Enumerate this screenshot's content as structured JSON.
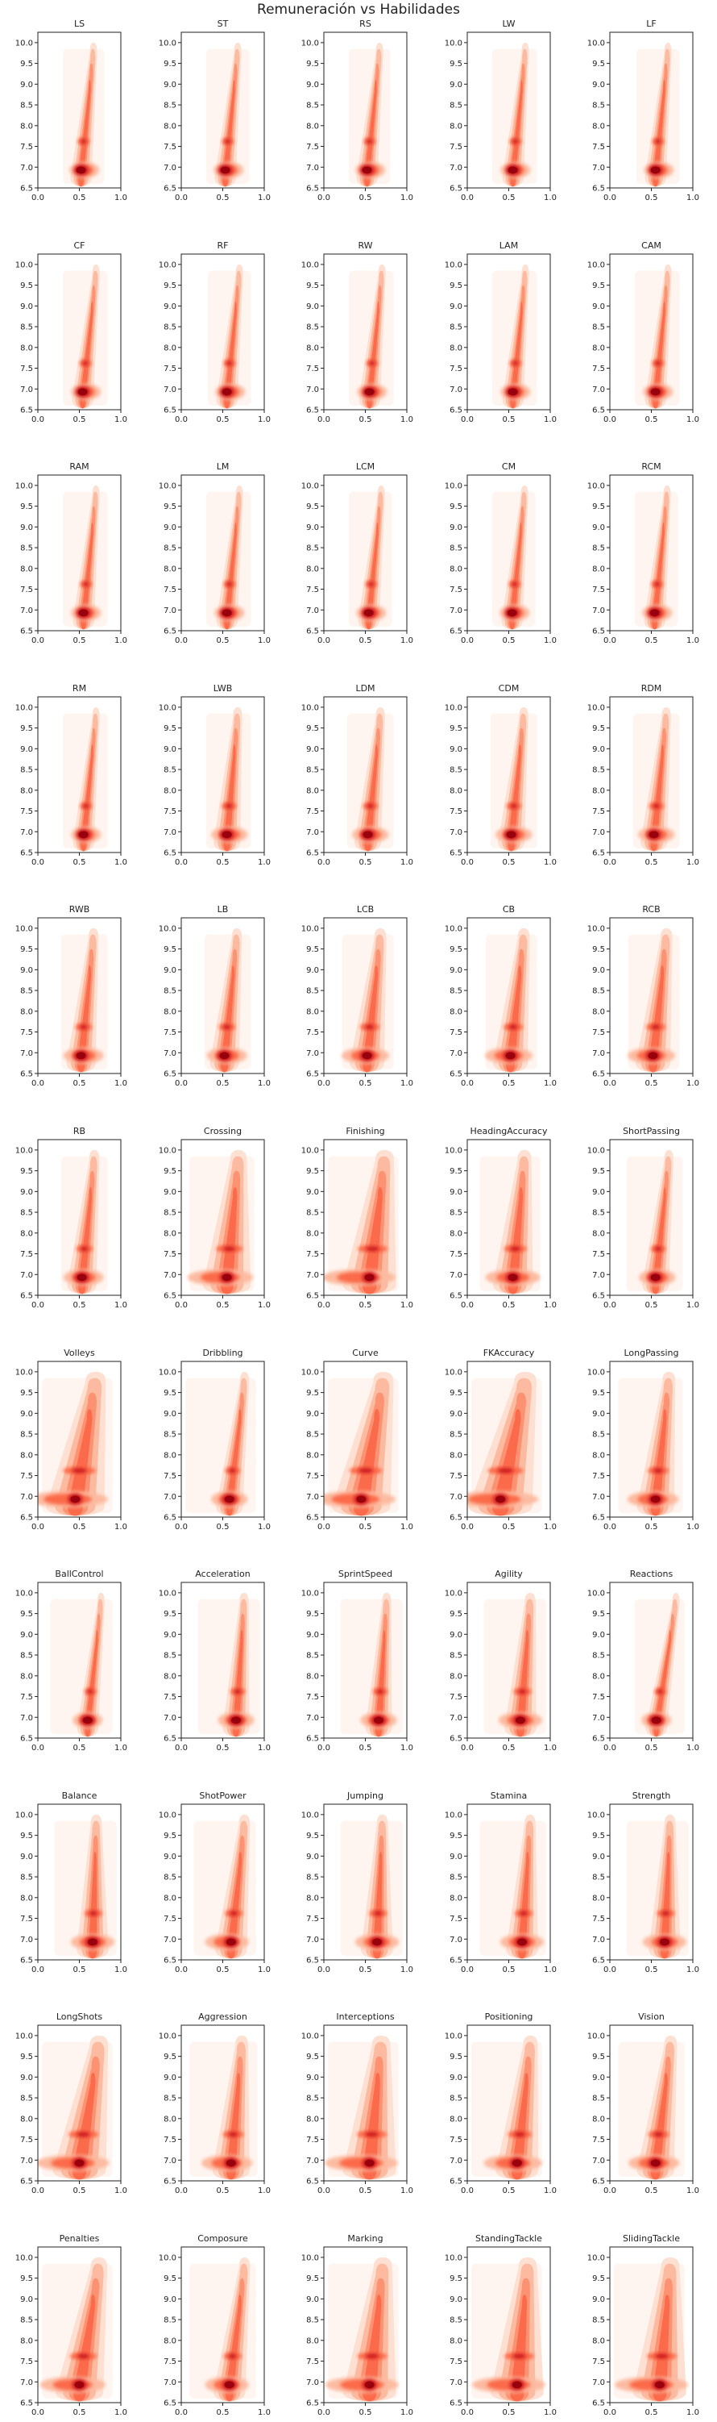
{
  "figure": {
    "title": "Remuneración vs Habilidades"
  },
  "chart_data": {
    "type": "kde-grid",
    "subtitle_note": "",
    "xlim": [
      0,
      1
    ],
    "ylim": [
      6.5,
      10.25
    ],
    "x_ticks": [
      0.0,
      0.5,
      1.0
    ],
    "x_tick_labels": [
      "0.0",
      "0.5",
      "1.0"
    ],
    "y_ticks": [
      6.5,
      7.0,
      7.5,
      8.0,
      8.5,
      9.0,
      9.5,
      10.0
    ],
    "y_tick_labels": [
      "6.5",
      "7.0",
      "7.5",
      "8.0",
      "8.5",
      "9.0",
      "9.5",
      "10.0"
    ],
    "colormap": [
      "#fff5f0",
      "#fee0d2",
      "#fcbba1",
      "#fc9272",
      "#fb6a4a",
      "#ef3b2c",
      "#cb181d",
      "#99000d"
    ],
    "grid": false,
    "panels": [
      {
        "title": "LS",
        "x_center": 0.56,
        "x_min": 0.3,
        "x_max": 0.8,
        "trend": [
          [
            0.52,
            7.0
          ],
          [
            0.66,
            9.8
          ]
        ],
        "spread": 0.08
      },
      {
        "title": "ST",
        "x_center": 0.57,
        "x_min": 0.3,
        "x_max": 0.82,
        "trend": [
          [
            0.53,
            7.0
          ],
          [
            0.67,
            9.8
          ]
        ],
        "spread": 0.08
      },
      {
        "title": "RS",
        "x_center": 0.56,
        "x_min": 0.3,
        "x_max": 0.8,
        "trend": [
          [
            0.52,
            7.0
          ],
          [
            0.66,
            9.8
          ]
        ],
        "spread": 0.08
      },
      {
        "title": "LW",
        "x_center": 0.58,
        "x_min": 0.3,
        "x_max": 0.84,
        "trend": [
          [
            0.55,
            7.0
          ],
          [
            0.69,
            9.8
          ]
        ],
        "spread": 0.08
      },
      {
        "title": "LF",
        "x_center": 0.59,
        "x_min": 0.32,
        "x_max": 0.84,
        "trend": [
          [
            0.55,
            7.0
          ],
          [
            0.69,
            9.8
          ]
        ],
        "spread": 0.08
      },
      {
        "title": "CF",
        "x_center": 0.58,
        "x_min": 0.3,
        "x_max": 0.84,
        "trend": [
          [
            0.54,
            7.0
          ],
          [
            0.69,
            9.8
          ]
        ],
        "spread": 0.08
      },
      {
        "title": "RF",
        "x_center": 0.59,
        "x_min": 0.32,
        "x_max": 0.84,
        "trend": [
          [
            0.55,
            7.0
          ],
          [
            0.69,
            9.8
          ]
        ],
        "spread": 0.08
      },
      {
        "title": "RW",
        "x_center": 0.58,
        "x_min": 0.3,
        "x_max": 0.84,
        "trend": [
          [
            0.55,
            7.0
          ],
          [
            0.69,
            9.8
          ]
        ],
        "spread": 0.08
      },
      {
        "title": "LAM",
        "x_center": 0.58,
        "x_min": 0.3,
        "x_max": 0.84,
        "trend": [
          [
            0.55,
            7.0
          ],
          [
            0.69,
            9.8
          ]
        ],
        "spread": 0.08
      },
      {
        "title": "CAM",
        "x_center": 0.58,
        "x_min": 0.3,
        "x_max": 0.84,
        "trend": [
          [
            0.55,
            7.0
          ],
          [
            0.69,
            9.8
          ]
        ],
        "spread": 0.08
      },
      {
        "title": "RAM",
        "x_center": 0.58,
        "x_min": 0.3,
        "x_max": 0.84,
        "trend": [
          [
            0.55,
            7.0
          ],
          [
            0.69,
            9.8
          ]
        ],
        "spread": 0.08
      },
      {
        "title": "LM",
        "x_center": 0.58,
        "x_min": 0.3,
        "x_max": 0.84,
        "trend": [
          [
            0.55,
            7.0
          ],
          [
            0.69,
            9.8
          ]
        ],
        "spread": 0.08
      },
      {
        "title": "LCM",
        "x_center": 0.57,
        "x_min": 0.3,
        "x_max": 0.82,
        "trend": [
          [
            0.54,
            7.0
          ],
          [
            0.68,
            9.8
          ]
        ],
        "spread": 0.08
      },
      {
        "title": "CM",
        "x_center": 0.57,
        "x_min": 0.3,
        "x_max": 0.82,
        "trend": [
          [
            0.54,
            7.0
          ],
          [
            0.68,
            9.8
          ]
        ],
        "spread": 0.08
      },
      {
        "title": "RCM",
        "x_center": 0.57,
        "x_min": 0.3,
        "x_max": 0.82,
        "trend": [
          [
            0.54,
            7.0
          ],
          [
            0.68,
            9.8
          ]
        ],
        "spread": 0.08
      },
      {
        "title": "RM",
        "x_center": 0.58,
        "x_min": 0.3,
        "x_max": 0.84,
        "trend": [
          [
            0.55,
            7.0
          ],
          [
            0.69,
            9.8
          ]
        ],
        "spread": 0.08
      },
      {
        "title": "LWB",
        "x_center": 0.58,
        "x_min": 0.3,
        "x_max": 0.84,
        "trend": [
          [
            0.55,
            7.0
          ],
          [
            0.67,
            9.8
          ]
        ],
        "spread": 0.1
      },
      {
        "title": "LDM",
        "x_center": 0.56,
        "x_min": 0.28,
        "x_max": 0.84,
        "trend": [
          [
            0.53,
            7.0
          ],
          [
            0.67,
            9.8
          ]
        ],
        "spread": 0.1
      },
      {
        "title": "CDM",
        "x_center": 0.56,
        "x_min": 0.28,
        "x_max": 0.84,
        "trend": [
          [
            0.53,
            7.0
          ],
          [
            0.67,
            9.8
          ]
        ],
        "spread": 0.1
      },
      {
        "title": "RDM",
        "x_center": 0.56,
        "x_min": 0.28,
        "x_max": 0.84,
        "trend": [
          [
            0.53,
            7.0
          ],
          [
            0.67,
            9.8
          ]
        ],
        "spread": 0.1
      },
      {
        "title": "RWB",
        "x_center": 0.55,
        "x_min": 0.28,
        "x_max": 0.84,
        "trend": [
          [
            0.52,
            7.0
          ],
          [
            0.66,
            9.8
          ]
        ],
        "spread": 0.11
      },
      {
        "title": "LB",
        "x_center": 0.55,
        "x_min": 0.28,
        "x_max": 0.84,
        "trend": [
          [
            0.52,
            7.0
          ],
          [
            0.66,
            9.8
          ]
        ],
        "spread": 0.11
      },
      {
        "title": "LCB",
        "x_center": 0.5,
        "x_min": 0.22,
        "x_max": 0.84,
        "trend": [
          [
            0.52,
            7.0
          ],
          [
            0.67,
            9.8
          ]
        ],
        "spread": 0.13
      },
      {
        "title": "CB",
        "x_center": 0.5,
        "x_min": 0.22,
        "x_max": 0.84,
        "trend": [
          [
            0.52,
            7.0
          ],
          [
            0.67,
            9.8
          ]
        ],
        "spread": 0.13
      },
      {
        "title": "RCB",
        "x_center": 0.5,
        "x_min": 0.22,
        "x_max": 0.84,
        "trend": [
          [
            0.52,
            7.0
          ],
          [
            0.67,
            9.8
          ]
        ],
        "spread": 0.13
      },
      {
        "title": "RB",
        "x_center": 0.55,
        "x_min": 0.28,
        "x_max": 0.84,
        "trend": [
          [
            0.53,
            7.0
          ],
          [
            0.67,
            9.8
          ]
        ],
        "spread": 0.11
      },
      {
        "title": "Crossing",
        "x_center": 0.47,
        "x_min": 0.1,
        "x_max": 0.88,
        "trend": [
          [
            0.55,
            7.0
          ],
          [
            0.68,
            9.8
          ]
        ],
        "spread": 0.18
      },
      {
        "title": "Finishing",
        "x_center": 0.42,
        "x_min": 0.05,
        "x_max": 0.9,
        "trend": [
          [
            0.55,
            7.0
          ],
          [
            0.72,
            9.8
          ]
        ],
        "spread": 0.2
      },
      {
        "title": "HeadingAccuracy",
        "x_center": 0.55,
        "x_min": 0.15,
        "x_max": 0.88,
        "trend": [
          [
            0.55,
            7.0
          ],
          [
            0.68,
            9.8
          ]
        ],
        "spread": 0.15
      },
      {
        "title": "ShortPassing",
        "x_center": 0.57,
        "x_min": 0.2,
        "x_max": 0.88,
        "trend": [
          [
            0.55,
            7.0
          ],
          [
            0.7,
            9.8
          ]
        ],
        "spread": 0.1
      },
      {
        "title": "Volleys",
        "x_center": 0.36,
        "x_min": 0.05,
        "x_max": 0.9,
        "trend": [
          [
            0.45,
            7.0
          ],
          [
            0.68,
            9.8
          ]
        ],
        "spread": 0.22
      },
      {
        "title": "Dribbling",
        "x_center": 0.58,
        "x_min": 0.05,
        "x_max": 0.9,
        "trend": [
          [
            0.58,
            7.0
          ],
          [
            0.75,
            9.8
          ]
        ],
        "spread": 0.1
      },
      {
        "title": "Curve",
        "x_center": 0.38,
        "x_min": 0.05,
        "x_max": 0.9,
        "trend": [
          [
            0.45,
            7.0
          ],
          [
            0.7,
            9.8
          ]
        ],
        "spread": 0.22
      },
      {
        "title": "FKAccuracy",
        "x_center": 0.33,
        "x_min": 0.05,
        "x_max": 0.9,
        "trend": [
          [
            0.4,
            7.0
          ],
          [
            0.68,
            9.8
          ]
        ],
        "spread": 0.24
      },
      {
        "title": "LongPassing",
        "x_center": 0.52,
        "x_min": 0.1,
        "x_max": 0.88,
        "trend": [
          [
            0.55,
            7.0
          ],
          [
            0.7,
            9.8
          ]
        ],
        "spread": 0.14
      },
      {
        "title": "BallControl",
        "x_center": 0.6,
        "x_min": 0.15,
        "x_max": 0.9,
        "trend": [
          [
            0.6,
            7.0
          ],
          [
            0.75,
            9.8
          ]
        ],
        "spread": 0.08
      },
      {
        "title": "Acceleration",
        "x_center": 0.66,
        "x_min": 0.2,
        "x_max": 0.95,
        "trend": [
          [
            0.66,
            7.0
          ],
          [
            0.75,
            9.8
          ]
        ],
        "spread": 0.1
      },
      {
        "title": "SprintSpeed",
        "x_center": 0.66,
        "x_min": 0.2,
        "x_max": 0.95,
        "trend": [
          [
            0.66,
            7.0
          ],
          [
            0.75,
            9.8
          ]
        ],
        "spread": 0.1
      },
      {
        "title": "Agility",
        "x_center": 0.64,
        "x_min": 0.2,
        "x_max": 0.95,
        "trend": [
          [
            0.64,
            7.0
          ],
          [
            0.75,
            9.8
          ]
        ],
        "spread": 0.12
      },
      {
        "title": "Reactions",
        "x_center": 0.56,
        "x_min": 0.3,
        "x_max": 0.9,
        "trend": [
          [
            0.56,
            7.0
          ],
          [
            0.78,
            9.8
          ]
        ],
        "spread": 0.08
      },
      {
        "title": "Balance",
        "x_center": 0.66,
        "x_min": 0.2,
        "x_max": 0.95,
        "trend": [
          [
            0.66,
            7.0
          ],
          [
            0.7,
            9.8
          ]
        ],
        "spread": 0.12
      },
      {
        "title": "ShotPower",
        "x_center": 0.55,
        "x_min": 0.15,
        "x_max": 0.9,
        "trend": [
          [
            0.6,
            7.0
          ],
          [
            0.75,
            9.8
          ]
        ],
        "spread": 0.12
      },
      {
        "title": "Jumping",
        "x_center": 0.64,
        "x_min": 0.2,
        "x_max": 0.95,
        "trend": [
          [
            0.64,
            7.0
          ],
          [
            0.7,
            9.8
          ]
        ],
        "spread": 0.12
      },
      {
        "title": "Stamina",
        "x_center": 0.66,
        "x_min": 0.15,
        "x_max": 0.95,
        "trend": [
          [
            0.66,
            7.0
          ],
          [
            0.75,
            9.8
          ]
        ],
        "spread": 0.12
      },
      {
        "title": "Strength",
        "x_center": 0.66,
        "x_min": 0.2,
        "x_max": 0.95,
        "trend": [
          [
            0.66,
            7.0
          ],
          [
            0.72,
            9.8
          ]
        ],
        "spread": 0.12
      },
      {
        "title": "LongShots",
        "x_center": 0.42,
        "x_min": 0.05,
        "x_max": 0.9,
        "trend": [
          [
            0.5,
            7.0
          ],
          [
            0.72,
            9.8
          ]
        ],
        "spread": 0.2
      },
      {
        "title": "Aggression",
        "x_center": 0.55,
        "x_min": 0.1,
        "x_max": 0.92,
        "trend": [
          [
            0.6,
            7.0
          ],
          [
            0.72,
            9.8
          ]
        ],
        "spread": 0.14
      },
      {
        "title": "Interceptions",
        "x_center": 0.45,
        "x_min": 0.05,
        "x_max": 0.9,
        "trend": [
          [
            0.55,
            7.0
          ],
          [
            0.68,
            9.8
          ]
        ],
        "spread": 0.2
      },
      {
        "title": "Positioning",
        "x_center": 0.55,
        "x_min": 0.05,
        "x_max": 0.9,
        "trend": [
          [
            0.6,
            7.0
          ],
          [
            0.75,
            9.8
          ]
        ],
        "spread": 0.16
      },
      {
        "title": "Vision",
        "x_center": 0.53,
        "x_min": 0.1,
        "x_max": 0.9,
        "trend": [
          [
            0.55,
            7.0
          ],
          [
            0.72,
            9.8
          ]
        ],
        "spread": 0.14
      },
      {
        "title": "Penalties",
        "x_center": 0.42,
        "x_min": 0.05,
        "x_max": 0.9,
        "trend": [
          [
            0.5,
            7.0
          ],
          [
            0.72,
            9.8
          ]
        ],
        "spread": 0.18
      },
      {
        "title": "Composure",
        "x_center": 0.55,
        "x_min": 0.1,
        "x_max": 0.9,
        "trend": [
          [
            0.58,
            7.0
          ],
          [
            0.75,
            9.8
          ]
        ],
        "spread": 0.12
      },
      {
        "title": "Marking",
        "x_center": 0.46,
        "x_min": 0.05,
        "x_max": 0.9,
        "trend": [
          [
            0.55,
            7.0
          ],
          [
            0.7,
            9.8
          ]
        ],
        "spread": 0.2
      },
      {
        "title": "StandingTackle",
        "x_center": 0.5,
        "x_min": 0.05,
        "x_max": 0.9,
        "trend": [
          [
            0.6,
            7.0
          ],
          [
            0.72,
            9.8
          ]
        ],
        "spread": 0.2
      },
      {
        "title": "SlidingTackle",
        "x_center": 0.5,
        "x_min": 0.05,
        "x_max": 0.9,
        "trend": [
          [
            0.6,
            7.0
          ],
          [
            0.72,
            9.8
          ]
        ],
        "spread": 0.2
      }
    ]
  }
}
